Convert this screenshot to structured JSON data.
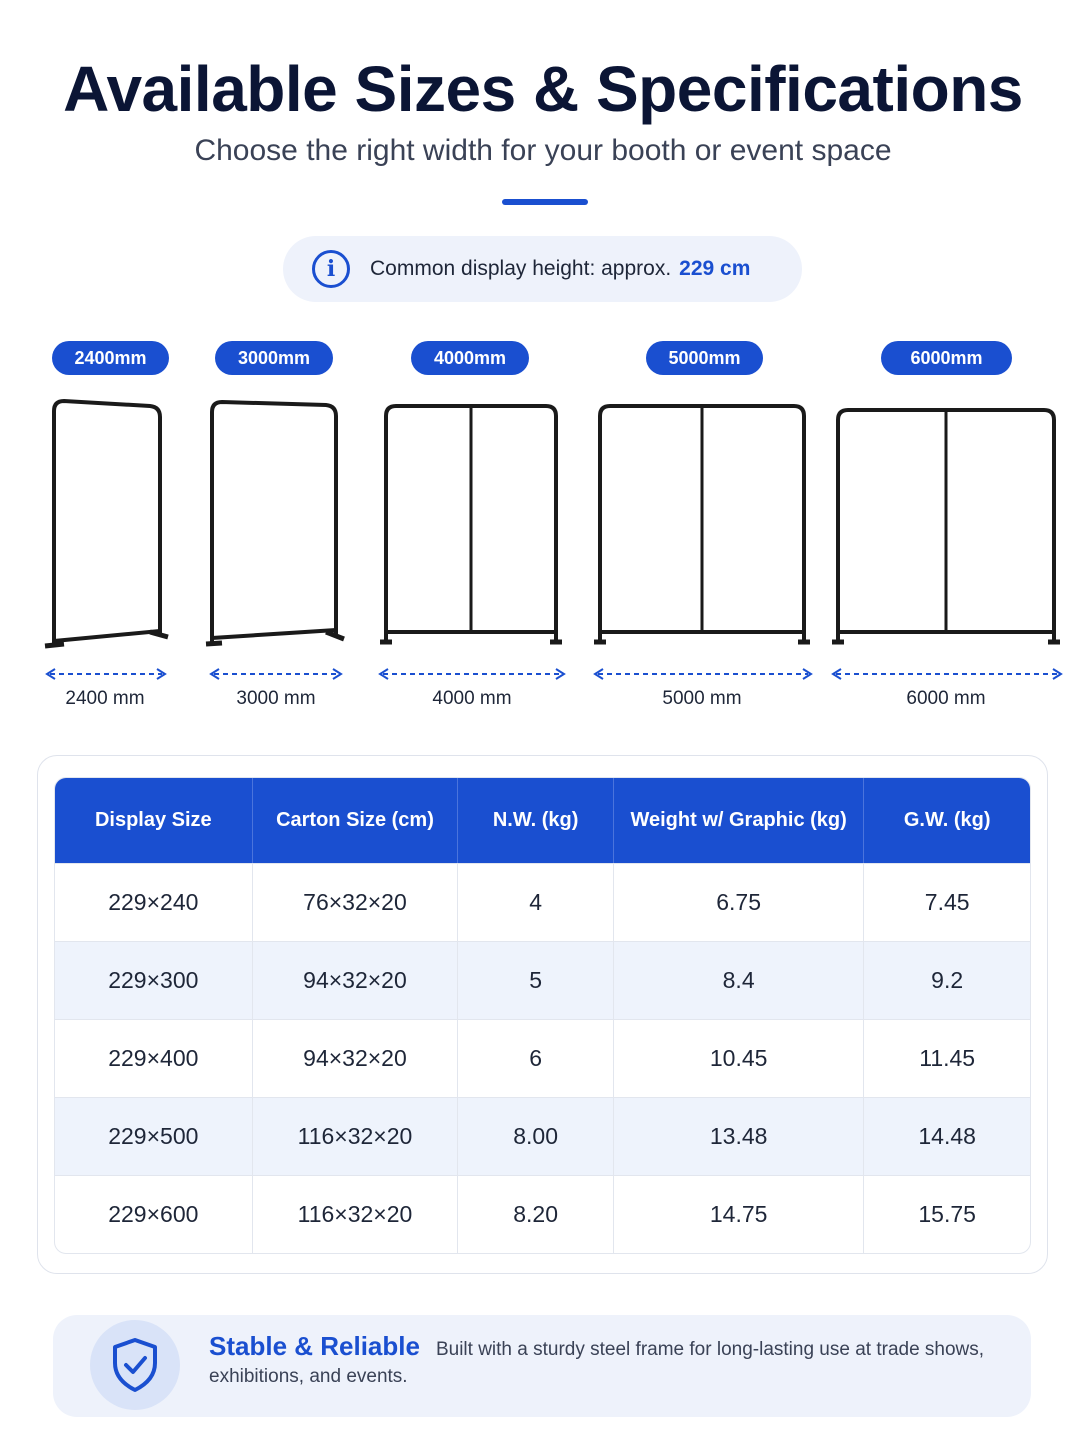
{
  "header": {
    "title": "Available Sizes & Specifications",
    "subtitle": "Choose the right width for your booth or event space"
  },
  "info": {
    "icon": "info-icon",
    "text": "Common display height: approx.",
    "value": "229 cm",
    "accent_color": "#1a4fd0"
  },
  "sizes": [
    {
      "badge": "2400mm",
      "label": "2400 mm",
      "panels": 1
    },
    {
      "badge": "3000mm",
      "label": "3000 mm",
      "panels": 1
    },
    {
      "badge": "4000mm",
      "label": "4000 mm",
      "panels": 2
    },
    {
      "badge": "5000mm",
      "label": "5000 mm",
      "panels": 2
    },
    {
      "badge": "6000mm",
      "label": "6000 mm",
      "panels": 2
    }
  ],
  "table": {
    "headers": [
      "Display Size",
      "Carton Size (cm)",
      "N.W. (kg)",
      "Weight w/ Graphic (kg)",
      "G.W. (kg)"
    ],
    "rows": [
      [
        "229×240",
        "76×32×20",
        "4",
        "6.75",
        "7.45"
      ],
      [
        "229×300",
        "94×32×20",
        "5",
        "8.4",
        "9.2"
      ],
      [
        "229×400",
        "94×32×20",
        "6",
        "10.45",
        "11.45"
      ],
      [
        "229×500",
        "116×32×20",
        "8.00",
        "13.48",
        "14.48"
      ],
      [
        "229×600",
        "116×32×20",
        "8.20",
        "14.75",
        "15.75"
      ]
    ]
  },
  "feature": {
    "icon": "shield-check-icon",
    "title": "Stable & Reliable",
    "text": "Built with a sturdy steel frame for long-lasting use at trade shows, exhibitions, and events."
  }
}
